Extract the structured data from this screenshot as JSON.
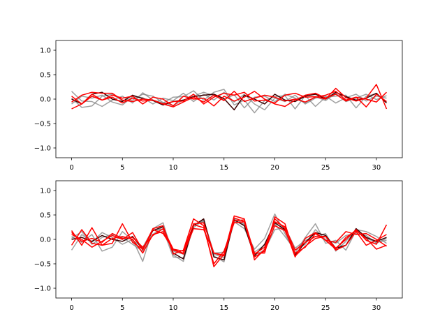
{
  "chart_data": [
    {
      "type": "line",
      "title": "",
      "xlabel": "",
      "ylabel": "",
      "xlim": [
        -1.55,
        32.55
      ],
      "ylim": [
        -1.2,
        1.2
      ],
      "xticks": [
        0,
        5,
        10,
        15,
        20,
        25,
        30
      ],
      "xtick_labels": [
        "0",
        "5",
        "10",
        "15",
        "20",
        "25",
        "30"
      ],
      "yticks": [
        -1.0,
        -0.5,
        0.0,
        0.5,
        1.0
      ],
      "ytick_labels": [
        "−1.0",
        "−0.5",
        "0.0",
        "0.5",
        "1.0"
      ],
      "grid": false,
      "series_colors": {
        "gray": "#808080",
        "dark": "#3b0000",
        "red": "#ff0000"
      },
      "series": [
        {
          "color": "gray",
          "values": [
            0.16,
            -0.04,
            -0.05,
            -0.15,
            -0.02,
            0.06,
            -0.08,
            0.13,
            -0.02,
            -0.08,
            0.04,
            0.05,
            0.17,
            -0.02,
            0.14,
            0.2,
            -0.12,
            -0.02,
            -0.28,
            -0.03,
            0.05,
            0.07,
            -0.2,
            0.07,
            -0.15,
            0.04,
            0.06,
            0.08,
            -0.18,
            0.06,
            0.11,
            -0.06
          ]
        },
        {
          "color": "gray",
          "values": [
            0.02,
            -0.17,
            -0.14,
            0.06,
            0.1,
            -0.03,
            -0.02,
            0.1,
            0.06,
            -0.07,
            -0.13,
            -0.02,
            0.06,
            0.14,
            0.07,
            -0.01,
            0.09,
            -0.18,
            0.04,
            0.06,
            -0.05,
            0.1,
            0.02,
            -0.08,
            0.05,
            -0.03,
            0.12,
            -0.05,
            0.02,
            0.1,
            -0.01,
            0.07
          ]
        },
        {
          "color": "gray",
          "values": [
            -0.1,
            0.06,
            0.02,
            0.08,
            -0.06,
            -0.12,
            0.05,
            0.03,
            -0.1,
            0.02,
            -0.03,
            0.12,
            -0.05,
            0.1,
            -0.02,
            0.14,
            -0.06,
            0.1,
            -0.1,
            -0.22,
            0.02,
            -0.05,
            0.08,
            -0.1,
            0.02,
            0.06,
            -0.08,
            0.03,
            0.1,
            -0.04,
            0.06,
            0.02
          ]
        },
        {
          "color": "dark",
          "values": [
            0.0,
            -0.1,
            0.1,
            0.14,
            0.0,
            -0.05,
            0.08,
            0.01,
            -0.03,
            -0.12,
            -0.05,
            -0.02,
            0.05,
            0.08,
            0.1,
            0.01,
            -0.22,
            0.08,
            0.0,
            -0.1,
            0.1,
            -0.02,
            -0.05,
            0.06,
            0.1,
            0.0,
            0.14,
            0.05,
            -0.02,
            0.02,
            0.12,
            -0.08
          ]
        },
        {
          "color": "red",
          "values": [
            -0.06,
            0.08,
            0.14,
            0.12,
            0.12,
            -0.02,
            -0.05,
            0.0,
            -0.02,
            -0.1,
            -0.05,
            -0.04,
            0.1,
            -0.1,
            0.04,
            0.12,
            0.08,
            0.14,
            -0.04,
            -0.02,
            -0.08,
            0.08,
            0.12,
            0.04,
            0.05,
            0.0,
            0.22,
            0.03,
            -0.04,
            0.02,
            0.3,
            -0.2
          ]
        },
        {
          "color": "red",
          "values": [
            0.06,
            -0.1,
            0.06,
            -0.02,
            0.08,
            0.02,
            0.06,
            -0.1,
            0.04,
            0.0,
            -0.14,
            0.06,
            0.0,
            0.02,
            -0.14,
            0.06,
            -0.04,
            0.04,
            0.16,
            0.0,
            -0.1,
            -0.15,
            -0.02,
            0.08,
            0.12,
            0.02,
            0.1,
            -0.04,
            0.04,
            -0.16,
            0.1,
            -0.05
          ]
        },
        {
          "color": "red",
          "values": [
            -0.2,
            -0.1,
            0.1,
            -0.02,
            0.04,
            -0.08,
            0.02,
            -0.04,
            -0.02,
            -0.1,
            -0.16,
            -0.06,
            0.04,
            -0.06,
            0.08,
            -0.03,
            0.16,
            -0.05,
            0.02,
            0.08,
            0.04,
            -0.04,
            0.0,
            -0.06,
            0.04,
            0.08,
            0.16,
            -0.02,
            0.04,
            0.0,
            -0.06,
            0.14
          ]
        }
      ]
    },
    {
      "type": "line",
      "title": "",
      "xlabel": "",
      "ylabel": "",
      "xlim": [
        -1.55,
        32.55
      ],
      "ylim": [
        -1.2,
        1.2
      ],
      "xticks": [
        0,
        5,
        10,
        15,
        20,
        25,
        30
      ],
      "xtick_labels": [
        "0",
        "5",
        "10",
        "15",
        "20",
        "25",
        "30"
      ],
      "yticks": [
        -1.0,
        -0.5,
        0.0,
        0.5,
        1.0
      ],
      "ytick_labels": [
        "−1.0",
        "−0.5",
        "0.0",
        "0.5",
        "1.0"
      ],
      "grid": false,
      "series_colors": {
        "gray": "#808080",
        "dark": "#3b0000",
        "red": "#ff0000"
      },
      "series": [
        {
          "color": "gray",
          "values": [
            -0.22,
            0.1,
            -0.06,
            0.14,
            0.04,
            -0.1,
            0.0,
            -0.45,
            0.22,
            0.34,
            -0.32,
            -0.45,
            0.3,
            0.38,
            -0.3,
            -0.38,
            0.36,
            0.22,
            -0.2,
            0.02,
            0.52,
            0.12,
            -0.28,
            0.04,
            0.32,
            -0.08,
            -0.02,
            -0.22,
            0.18,
            0.02,
            -0.06,
            -0.02
          ]
        },
        {
          "color": "gray",
          "values": [
            0.02,
            0.16,
            -0.1,
            0.04,
            0.1,
            0.04,
            -0.1,
            -0.24,
            0.1,
            0.26,
            -0.24,
            -0.3,
            0.3,
            0.36,
            -0.34,
            -0.46,
            0.42,
            0.32,
            -0.26,
            -0.12,
            0.32,
            0.06,
            -0.22,
            -0.1,
            0.2,
            0.0,
            -0.08,
            0.08,
            0.12,
            0.08,
            -0.08,
            0.02
          ]
        },
        {
          "color": "gray",
          "values": [
            0.06,
            -0.06,
            0.1,
            -0.24,
            -0.16,
            0.16,
            -0.02,
            -0.16,
            0.2,
            0.2,
            -0.36,
            -0.38,
            0.24,
            0.4,
            -0.28,
            -0.26,
            0.38,
            0.3,
            -0.32,
            -0.22,
            0.2,
            0.24,
            -0.18,
            -0.02,
            0.06,
            0.12,
            -0.24,
            -0.04,
            0.2,
            0.16,
            0.06,
            -0.08
          ]
        },
        {
          "color": "dark",
          "values": [
            0.0,
            0.04,
            -0.04,
            0.08,
            0.0,
            -0.04,
            0.06,
            -0.2,
            0.18,
            0.26,
            -0.28,
            -0.4,
            0.28,
            0.42,
            -0.36,
            -0.42,
            0.4,
            0.28,
            -0.34,
            -0.1,
            0.34,
            0.2,
            -0.32,
            -0.06,
            0.14,
            0.08,
            -0.18,
            -0.12,
            0.22,
            0.04,
            -0.04,
            0.04
          ]
        },
        {
          "color": "red",
          "values": [
            0.18,
            -0.12,
            0.24,
            -0.12,
            -0.08,
            0.32,
            -0.06,
            -0.2,
            0.22,
            0.28,
            -0.3,
            -0.22,
            0.42,
            0.28,
            -0.56,
            -0.3,
            0.48,
            0.42,
            -0.42,
            -0.2,
            0.42,
            0.22,
            -0.36,
            0.02,
            0.14,
            -0.02,
            -0.2,
            0.04,
            0.18,
            0.02,
            -0.2,
            -0.12
          ]
        },
        {
          "color": "red",
          "values": [
            -0.12,
            0.2,
            -0.08,
            -0.12,
            0.02,
            0.06,
            0.0,
            -0.28,
            0.1,
            0.16,
            -0.22,
            -0.28,
            0.32,
            0.34,
            -0.28,
            -0.32,
            0.44,
            0.36,
            -0.36,
            -0.24,
            0.28,
            0.18,
            -0.28,
            -0.16,
            0.12,
            -0.02,
            -0.06,
            0.16,
            0.1,
            0.12,
            0.0,
            -0.14
          ]
        },
        {
          "color": "red",
          "values": [
            0.1,
            0.0,
            -0.16,
            -0.04,
            0.08,
            0.0,
            0.14,
            -0.22,
            0.2,
            0.12,
            -0.2,
            -0.3,
            0.22,
            0.2,
            -0.28,
            -0.34,
            0.38,
            0.4,
            -0.3,
            -0.16,
            0.36,
            0.26,
            -0.22,
            -0.06,
            0.06,
            0.06,
            -0.18,
            0.0,
            0.2,
            -0.02,
            -0.1,
            0.3
          ]
        },
        {
          "color": "red",
          "values": [
            0.14,
            -0.04,
            0.02,
            -0.06,
            0.12,
            0.02,
            0.04,
            -0.16,
            0.08,
            0.22,
            -0.2,
            -0.24,
            0.3,
            0.24,
            -0.5,
            -0.24,
            0.34,
            0.36,
            -0.28,
            -0.28,
            0.46,
            0.32,
            -0.34,
            -0.14,
            0.02,
            0.06,
            -0.22,
            -0.12,
            0.16,
            -0.12,
            -0.02,
            0.1
          ]
        }
      ]
    }
  ]
}
